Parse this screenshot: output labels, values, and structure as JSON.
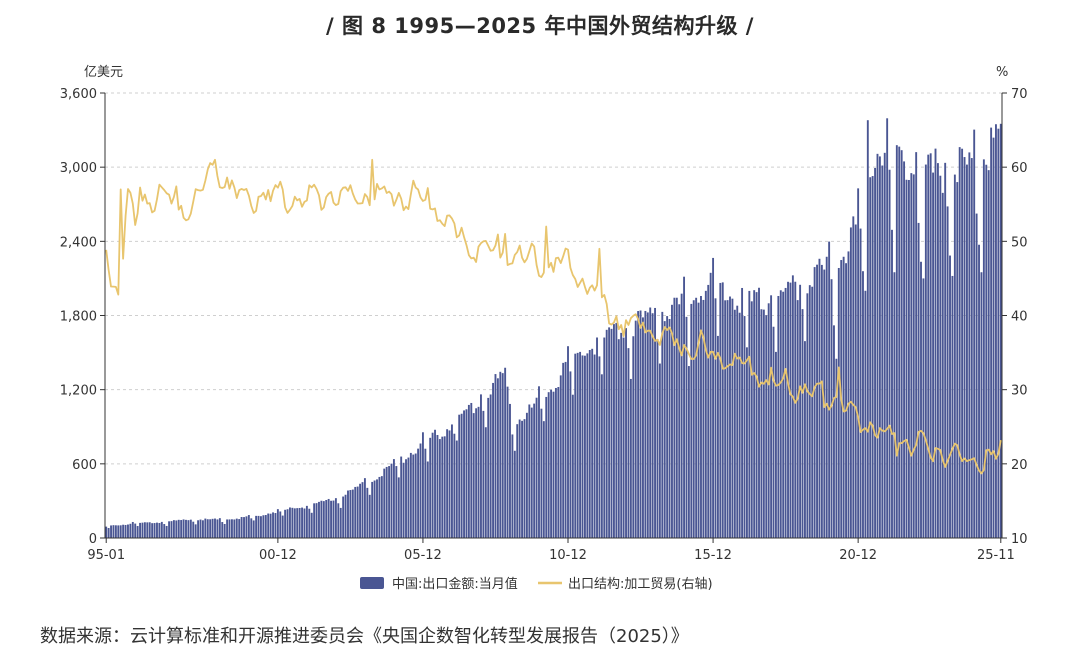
{
  "title": "/ 图 8 1995—2025 年中国外贸结构升级 /",
  "source": "数据来源：云计算标准和开源推进委员会《央国企数智化转型发展报告（2025）》",
  "chart_data": {
    "type": "bar+line",
    "left_unit": "亿美元",
    "right_unit": "%",
    "left_ylim": [
      0,
      3600
    ],
    "right_ylim": [
      10,
      70
    ],
    "left_ticks": [
      "0",
      "600",
      "1,200",
      "1,800",
      "2,400",
      "3,000",
      "3,600"
    ],
    "right_ticks": [
      "10",
      "20",
      "30",
      "40",
      "50",
      "60",
      "70"
    ],
    "x_ticks": [
      "95-01",
      "00-12",
      "05-12",
      "10-12",
      "15-12",
      "20-12",
      "25-11"
    ],
    "x_tick_index": [
      0,
      71,
      131,
      191,
      251,
      311,
      370
    ],
    "legend": {
      "bar": "中国:出口金额:当月值",
      "line": "出口结构:加工贸易(右轴)"
    },
    "colors": {
      "bar": "#4a5693",
      "line": "#e8c56e",
      "grid": "#cfcfcf",
      "axis": "#333333"
    },
    "series": [
      {
        "name": "中国:出口金额:当月值",
        "kind": "bar",
        "axis": "left",
        "anchors": [
          [
            0,
            95
          ],
          [
            12,
            120
          ],
          [
            24,
            130
          ],
          [
            36,
            150
          ],
          [
            48,
            150
          ],
          [
            60,
            170
          ],
          [
            72,
            220
          ],
          [
            84,
            260
          ],
          [
            96,
            320
          ],
          [
            108,
            450
          ],
          [
            120,
            600
          ],
          [
            132,
            780
          ],
          [
            144,
            920
          ],
          [
            156,
            1150
          ],
          [
            165,
            1350
          ],
          [
            168,
            950
          ],
          [
            176,
            1050
          ],
          [
            184,
            1200
          ],
          [
            192,
            1450
          ],
          [
            204,
            1580
          ],
          [
            216,
            1700
          ],
          [
            228,
            1850
          ],
          [
            240,
            1900
          ],
          [
            252,
            2050
          ],
          [
            264,
            1900
          ],
          [
            276,
            1920
          ],
          [
            288,
            2050
          ],
          [
            300,
            2200
          ],
          [
            306,
            2350
          ],
          [
            312,
            2600
          ],
          [
            318,
            3100
          ],
          [
            324,
            3200
          ],
          [
            336,
            2950
          ],
          [
            348,
            2950
          ],
          [
            360,
            3050
          ],
          [
            370,
            3250
          ]
        ],
        "peaks": [
          [
            315,
            3380
          ],
          [
            366,
            3320
          ],
          [
            343,
            3150
          ]
        ],
        "dips": [
          [
            302,
            1450
          ],
          [
            314,
            2000
          ],
          [
            326,
            2150
          ],
          [
            338,
            2100
          ],
          [
            350,
            2120
          ],
          [
            362,
            2150
          ]
        ]
      },
      {
        "name": "出口结构:加工贸易(右轴)",
        "kind": "line",
        "axis": "right",
        "anchors": [
          [
            0,
            50
          ],
          [
            2,
            44
          ],
          [
            5,
            45
          ],
          [
            7,
            48
          ],
          [
            9,
            56
          ],
          [
            11,
            55
          ],
          [
            12,
            52
          ],
          [
            14,
            56
          ],
          [
            24,
            56
          ],
          [
            30,
            55
          ],
          [
            36,
            55
          ],
          [
            40,
            57
          ],
          [
            45,
            60
          ],
          [
            50,
            58
          ],
          [
            55,
            56
          ],
          [
            72,
            56
          ],
          [
            84,
            56
          ],
          [
            96,
            56
          ],
          [
            108,
            56
          ],
          [
            120,
            56
          ],
          [
            132,
            56
          ],
          [
            140,
            53
          ],
          [
            150,
            49
          ],
          [
            160,
            49
          ],
          [
            170,
            48
          ],
          [
            180,
            47
          ],
          [
            190,
            47
          ],
          [
            200,
            44
          ],
          [
            204,
            42
          ],
          [
            212,
            39
          ],
          [
            228,
            38
          ],
          [
            240,
            35
          ],
          [
            252,
            35
          ],
          [
            264,
            33
          ],
          [
            276,
            31
          ],
          [
            288,
            30
          ],
          [
            300,
            29
          ],
          [
            306,
            27
          ],
          [
            312,
            26
          ],
          [
            320,
            24
          ],
          [
            330,
            23
          ],
          [
            340,
            22
          ],
          [
            350,
            21
          ],
          [
            358,
            21
          ],
          [
            364,
            20
          ],
          [
            368,
            21
          ],
          [
            370,
            22
          ]
        ],
        "spikes": [
          [
            6,
            57
          ],
          [
            45,
            61
          ],
          [
            110,
            61
          ],
          [
            165,
            51
          ],
          [
            182,
            52
          ],
          [
            204,
            49
          ],
          [
            246,
            38
          ],
          [
            303,
            33
          ]
        ]
      }
    ],
    "n_months": 371
  }
}
